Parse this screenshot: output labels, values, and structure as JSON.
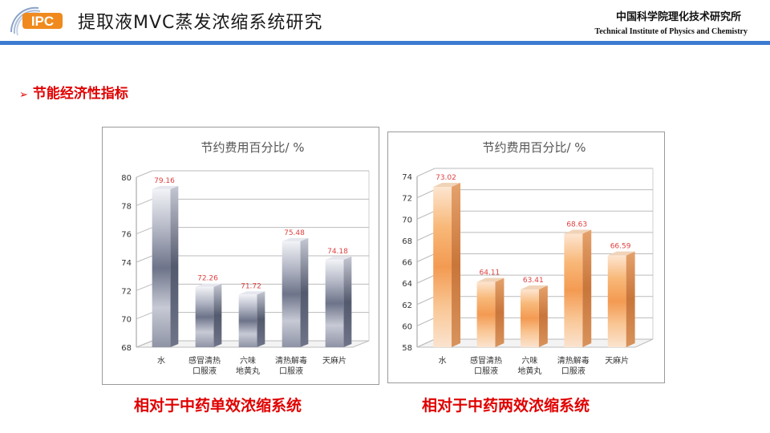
{
  "header": {
    "logo_text": "IPC",
    "title": "提取液MVC蒸发浓缩系统研究",
    "institute_cn": "中国科学院理化技术研究所",
    "institute_en": "Technical Institute of Physics and Chemistry",
    "bar_color": "#3d7bd1"
  },
  "section": {
    "arrow": "➢",
    "title": "节能经济性指标"
  },
  "chart_data": [
    {
      "type": "bar",
      "title": "节约费用百分比/ %",
      "categories": [
        "水",
        "感冒清热\n口服液",
        "六味\n地黄丸",
        "清热解毒\n口服液",
        "天麻片"
      ],
      "values": [
        79.16,
        72.26,
        71.72,
        75.48,
        74.18
      ],
      "value_labels": [
        "79.16",
        "72.26",
        "71.72",
        "75.48",
        "74.18"
      ],
      "ylim": [
        68,
        80
      ],
      "yticks": [
        68,
        70,
        72,
        74,
        76,
        78,
        80
      ],
      "grid": true,
      "colors": {
        "bar": "#8a90a3",
        "label": "#e04040"
      }
    },
    {
      "type": "bar",
      "title": "节约费用百分比/ %",
      "categories": [
        "水",
        "感冒清热\n口服液",
        "六味\n地黄丸",
        "清热解毒\n口服液",
        "天麻片"
      ],
      "values": [
        73.02,
        64.11,
        63.41,
        68.63,
        66.59
      ],
      "value_labels": [
        "73.02",
        "64.11",
        "63.41",
        "68.63",
        "66.59"
      ],
      "ylim": [
        58,
        74
      ],
      "yticks": [
        58,
        60,
        62,
        64,
        66,
        68,
        70,
        72,
        74
      ],
      "grid": true,
      "colors": {
        "bar": "#f7a55e",
        "label": "#e04040"
      }
    }
  ],
  "captions": {
    "left": "相对于中药单效浓缩系统",
    "right": "相对于中药两效浓缩系统"
  }
}
